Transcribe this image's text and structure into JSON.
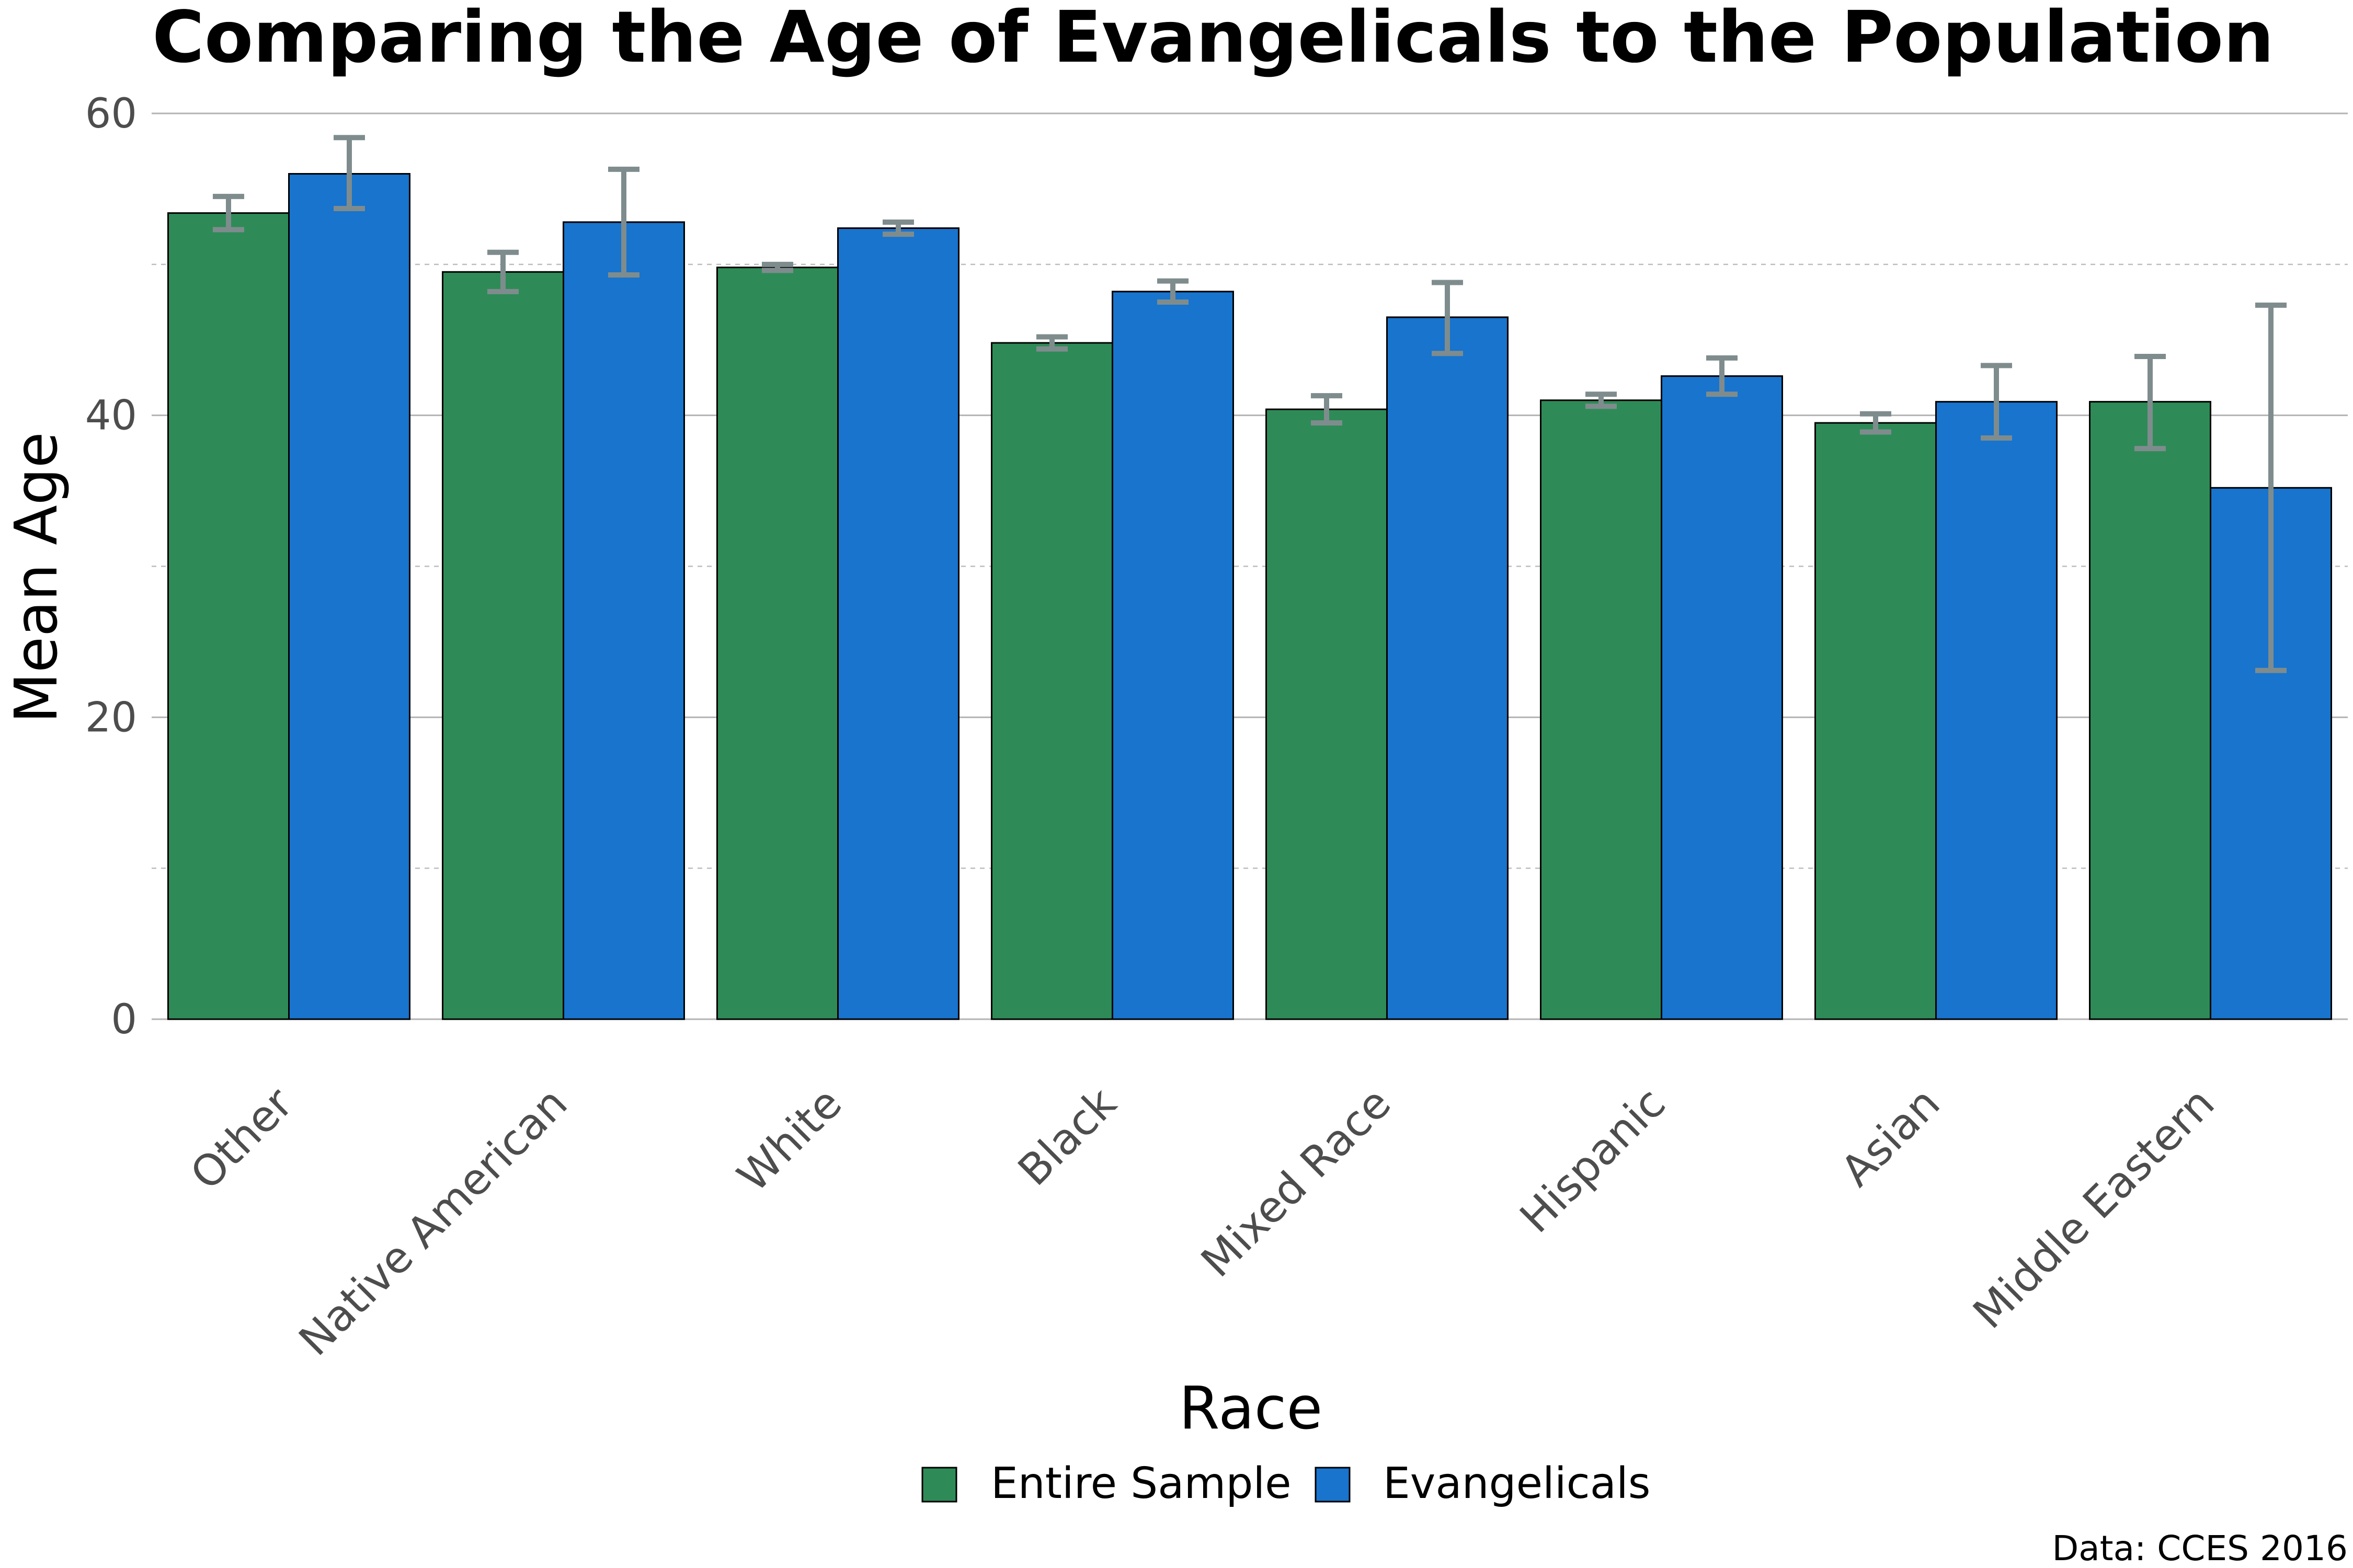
{
  "chart_data": {
    "type": "bar",
    "title": "Comparing the Age of Evangelicals to the Population",
    "xlabel": "Race",
    "ylabel": "Mean Age",
    "caption": "Data: CCES 2016",
    "ylim": [
      0,
      60
    ],
    "yticks": [
      "0",
      "20",
      "40",
      "60"
    ],
    "grid": true,
    "legend_position": "bottom",
    "categories": [
      "Other",
      "Native American",
      "White",
      "Black",
      "Mixed Race",
      "Hispanic",
      "Asian",
      "Middle Eastern"
    ],
    "series": [
      {
        "name": "Entire Sample",
        "color": "#2e8b57",
        "values": [
          53.4,
          49.5,
          49.8,
          44.8,
          40.4,
          41.0,
          39.5,
          40.9
        ],
        "error_low": [
          52.3,
          48.2,
          49.6,
          44.4,
          39.5,
          40.6,
          38.9,
          37.8
        ],
        "error_high": [
          54.5,
          50.8,
          50.0,
          45.2,
          41.3,
          41.4,
          40.1,
          43.9
        ]
      },
      {
        "name": "Evangelicals",
        "color": "#1874cd",
        "values": [
          56.0,
          52.8,
          52.4,
          48.2,
          46.5,
          42.6,
          40.9,
          35.2
        ],
        "error_low": [
          53.7,
          49.3,
          52.0,
          47.5,
          44.1,
          41.4,
          38.5,
          23.1
        ],
        "error_high": [
          58.4,
          56.3,
          52.8,
          48.9,
          48.8,
          43.8,
          43.3,
          47.3
        ]
      }
    ],
    "error_bar_color": "#7f8c8d"
  }
}
